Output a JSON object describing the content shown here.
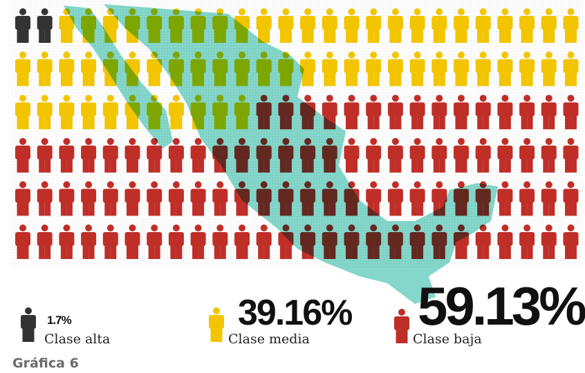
{
  "chart_data": {
    "type": "pictogram",
    "categories": [
      "Clase alta",
      "Clase media",
      "Clase baja"
    ],
    "values": [
      1.7,
      39.16,
      59.13
    ],
    "value_labels": [
      "1.7%",
      "39.16%",
      "59.13%"
    ],
    "colors": [
      "#333333",
      "#f2c500",
      "#bf2f28"
    ]
  },
  "caption": "Gráfica 6"
}
